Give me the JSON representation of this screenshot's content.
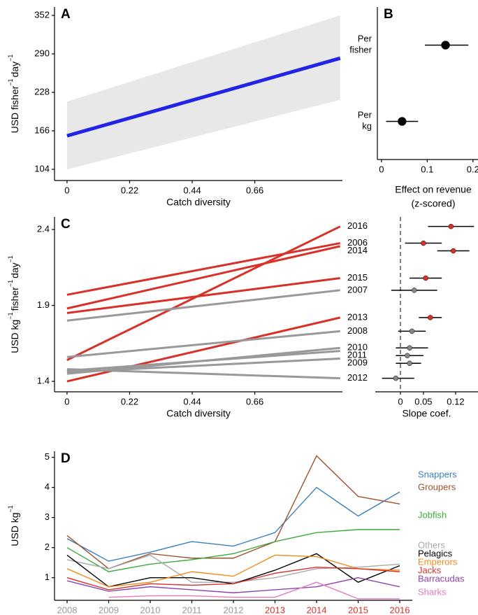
{
  "chart_data": [
    {
      "type": "line-ribbon",
      "label": "A",
      "x": [
        0,
        0.96
      ],
      "values": [
        158,
        283
      ],
      "lower": [
        104,
        216
      ],
      "upper": [
        213,
        352
      ],
      "color": "#2323e6",
      "band_color": "#e8e8e8",
      "line_width": 5,
      "xlim": [
        -0.044,
        0.968
      ],
      "ylim": [
        86,
        365.5
      ],
      "xticks": [
        0,
        0.22,
        0.44,
        0.66
      ],
      "yticks": [
        104,
        166,
        228,
        290,
        352
      ],
      "xlabel": "Catch diversity",
      "ylabel": [
        "USD fisher",
        "−1",
        "day",
        "−1"
      ]
    },
    {
      "type": "dot-whisker",
      "label": "B",
      "categories": [
        [
          "Per",
          "fisher"
        ],
        [
          "Per",
          "kg"
        ]
      ],
      "values": [
        0.14,
        0.045
      ],
      "lower": [
        0.095,
        0.01
      ],
      "upper": [
        0.19,
        0.08
      ],
      "color": "#000000",
      "point_size": 6,
      "xlim": [
        -0.009,
        0.211
      ],
      "xticks": [
        0,
        0.1,
        0.2
      ],
      "xlabel": [
        "Effect on revenue",
        "(z-scored)"
      ]
    },
    {
      "type": "line",
      "label": "C",
      "x": [
        0,
        0.96
      ],
      "line_width": 3,
      "xlim": [
        -0.044,
        0.968
      ],
      "ylim": [
        1.331,
        2.483
      ],
      "xticks": [
        0,
        0.22,
        0.44,
        0.66
      ],
      "yticks": [
        1.4,
        1.9,
        2.4
      ],
      "xlabel": "Catch diversity",
      "ylabel": [
        "USD kg",
        "−1",
        "fisher",
        "−1",
        "day",
        "−1"
      ],
      "series": [
        {
          "name": "2016",
          "color": "#d8312a",
          "values": [
            1.54,
            2.42
          ]
        },
        {
          "name": "2006",
          "color": "#d8312a",
          "values": [
            1.97,
            2.31
          ]
        },
        {
          "name": "2014",
          "color": "#d8312a",
          "values": [
            1.88,
            2.29
          ]
        },
        {
          "name": "2015",
          "color": "#d8312a",
          "values": [
            1.85,
            2.08
          ]
        },
        {
          "name": "2007",
          "color": "#999999",
          "values": [
            1.8,
            2.0
          ]
        },
        {
          "name": "2013",
          "color": "#d8312a",
          "values": [
            1.4,
            1.82
          ]
        },
        {
          "name": "2008",
          "color": "#999999",
          "values": [
            1.56,
            1.73
          ]
        },
        {
          "name": "2010",
          "color": "#999999",
          "values": [
            1.45,
            1.62
          ]
        },
        {
          "name": "2011",
          "color": "#999999",
          "values": [
            1.47,
            1.6
          ]
        },
        {
          "name": "2009",
          "color": "#999999",
          "values": [
            1.46,
            1.55
          ]
        },
        {
          "name": "2012",
          "color": "#999999",
          "values": [
            1.48,
            1.42
          ]
        }
      ]
    },
    {
      "type": "dot-whisker",
      "values": [
        0.11,
        0.05,
        0.115,
        0.055,
        0.03,
        0.065,
        0.025,
        0.02,
        0.015,
        0.02,
        -0.01
      ],
      "lower": [
        0.06,
        0.01,
        0.08,
        0.02,
        -0.02,
        0.04,
        -0.005,
        -0.01,
        -0.01,
        -0.01,
        -0.04
      ],
      "upper": [
        0.16,
        0.09,
        0.15,
        0.09,
        0.08,
        0.09,
        0.055,
        0.06,
        0.05,
        0.045,
        0.03
      ],
      "colors": [
        "#d8312a",
        "#d8312a",
        "#d8312a",
        "#d8312a",
        "#888888",
        "#d8312a",
        "#888888",
        "#888888",
        "#888888",
        "#888888",
        "#888888"
      ],
      "point_size": 3.5,
      "zero_line": true,
      "xlim": [
        -0.0547,
        0.1687
      ],
      "xticks": [
        0,
        0.05,
        0.12
      ],
      "xlabel": "Slope coef."
    },
    {
      "type": "line",
      "label": "D",
      "line_width": 1.4,
      "categories": [
        "2008",
        "2009",
        "2010",
        "2011",
        "2012",
        "2013",
        "2014",
        "2015",
        "2016"
      ],
      "category_colors": [
        "#999999",
        "#999999",
        "#999999",
        "#999999",
        "#999999",
        "#d8312a",
        "#d8312a",
        "#d8312a",
        "#d8312a"
      ],
      "ylim": [
        0.25,
        5.2
      ],
      "yticks": [
        1,
        2,
        3,
        4,
        5
      ],
      "ylabel": [
        "USD kg",
        "−1"
      ],
      "series": [
        {
          "name": "Snappers",
          "color": "#3a7fbf",
          "values": [
            2.3,
            1.55,
            1.85,
            2.2,
            2.05,
            2.5,
            4.0,
            3.05,
            3.85
          ]
        },
        {
          "name": "Groupers",
          "color": "#a0522d",
          "values": [
            2.4,
            1.3,
            1.8,
            1.65,
            1.65,
            2.2,
            5.05,
            3.7,
            3.45
          ]
        },
        {
          "name": "Jobfish",
          "color": "#3aab3a",
          "values": [
            2.0,
            1.2,
            1.45,
            1.6,
            1.8,
            2.2,
            2.5,
            2.6,
            2.6
          ]
        },
        {
          "name": "Others",
          "color": "#aaaaaa",
          "values": [
            1.6,
            1.3,
            1.75,
            0.85,
            0.85,
            1.0,
            1.3,
            1.35,
            1.45
          ]
        },
        {
          "name": "Pelagics",
          "color": "#000000",
          "values": [
            1.75,
            0.7,
            1.0,
            1.0,
            0.8,
            1.25,
            1.8,
            0.85,
            1.4
          ]
        },
        {
          "name": "Emperors",
          "color": "#f28a1a",
          "values": [
            1.3,
            0.7,
            0.85,
            1.2,
            1.05,
            1.75,
            1.7,
            1.3,
            1.25
          ]
        },
        {
          "name": "Jacks",
          "color": "#d8312a",
          "values": [
            1.0,
            0.6,
            0.8,
            0.75,
            0.8,
            1.15,
            1.35,
            1.3,
            1.2
          ]
        },
        {
          "name": "Barracudas",
          "color": "#8e44ad",
          "values": [
            0.9,
            0.55,
            0.7,
            0.6,
            0.5,
            0.6,
            0.7,
            1.0,
            0.7
          ]
        },
        {
          "name": "Sharks",
          "color": "#e87bbd",
          "values": [
            null,
            0.35,
            0.4,
            0.4,
            0.35,
            0.35,
            0.85,
            0.3,
            0.3
          ]
        }
      ]
    }
  ]
}
